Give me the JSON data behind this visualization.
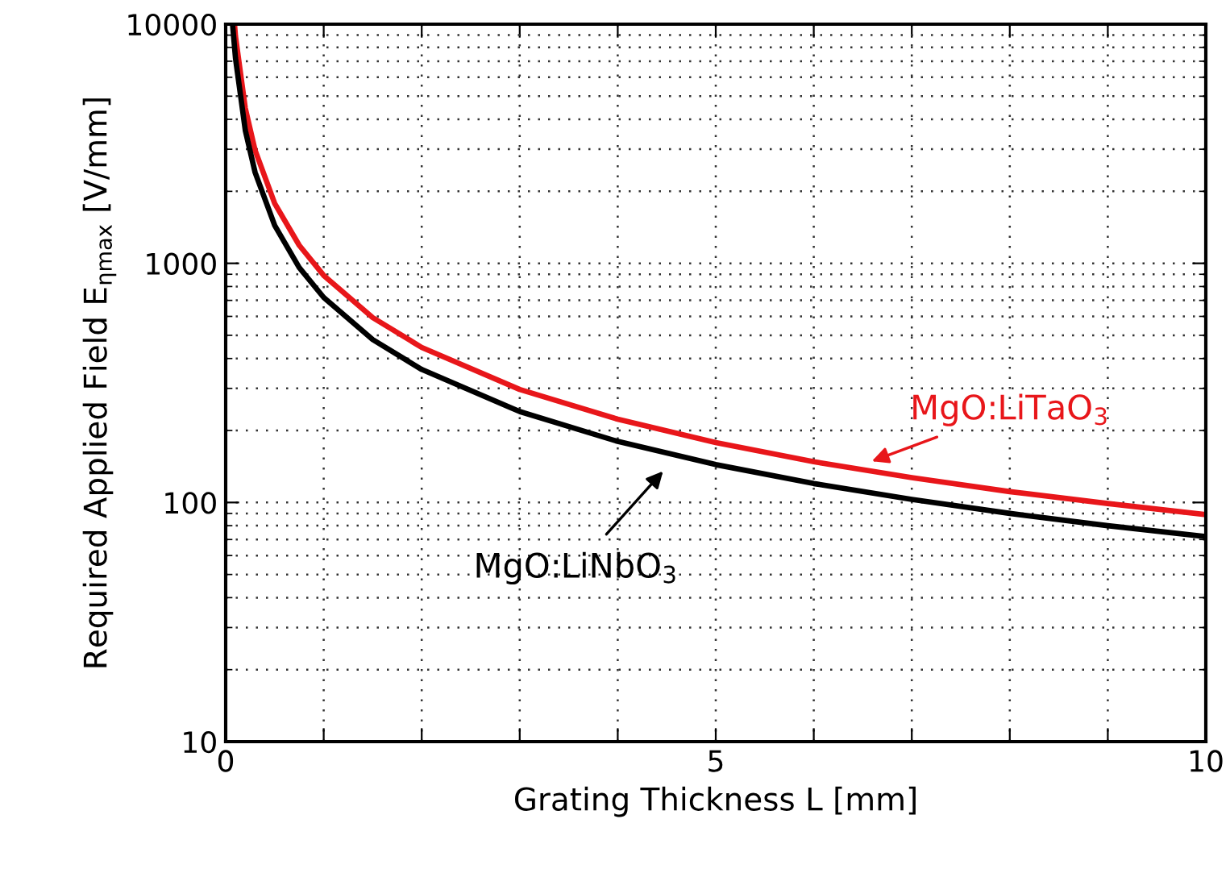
{
  "chart_data": {
    "type": "line",
    "xlabel": "Grating Thickness L [mm]",
    "ylabel": "Required Applied Field E$_{ηmax}$ [V/mm]",
    "xlim": [
      0,
      10
    ],
    "ylim": [
      10,
      10000
    ],
    "log": "y",
    "grid": true,
    "legend": false,
    "marker": "none",
    "line_style": "solid",
    "xticks": [
      0,
      {
        "value": 1,
        "label": null
      },
      {
        "value": 2,
        "label": null
      },
      {
        "value": 3,
        "label": null
      },
      {
        "value": 4,
        "label": null
      },
      5,
      {
        "value": 6,
        "label": null
      },
      {
        "value": 7,
        "label": null
      },
      {
        "value": 8,
        "label": null
      },
      {
        "value": 9,
        "label": null
      },
      10
    ],
    "yticks": [
      10,
      100,
      1000,
      10000
    ],
    "series": [
      {
        "color": "#e8161a",
        "x": [
          0.09,
          0.1,
          0.2,
          0.3,
          0.5,
          0.75,
          1,
          1.5,
          2,
          3,
          4,
          5,
          6,
          7,
          8,
          9,
          10
        ],
        "values": [
          10000,
          8900,
          4450,
          2970,
          1780,
          1190,
          890,
          593,
          445,
          297,
          223,
          178,
          148,
          127,
          111,
          99,
          89
        ]
      },
      {
        "color": "#000000",
        "x": [
          0.07,
          0.1,
          0.2,
          0.3,
          0.5,
          0.75,
          1,
          1.5,
          2,
          3,
          4,
          5,
          6,
          7,
          8,
          9,
          10
        ],
        "values": [
          10000,
          7200,
          3600,
          2400,
          1440,
          960,
          720,
          480,
          360,
          240,
          180,
          144,
          120,
          103,
          90,
          80,
          72
        ]
      }
    ],
    "annotations": [
      {
        "text": "MgO:LiTaO$_{3}$",
        "x": 6.4,
        "y": 139
      },
      {
        "text": "MgO:LiNbO$_{3}$",
        "x": 4.6,
        "y": 156
      }
    ]
  }
}
